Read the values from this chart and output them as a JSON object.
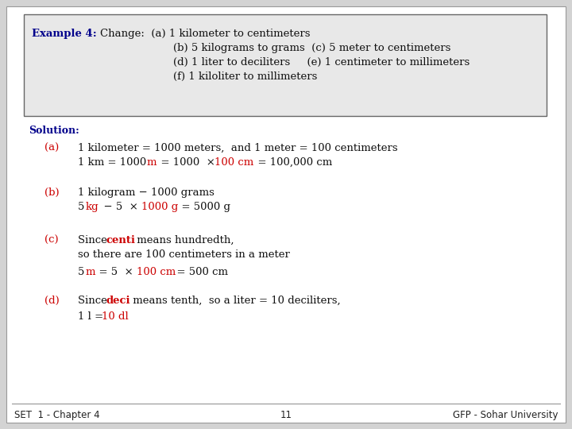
{
  "bg_color": "#d3d3d3",
  "slide_bg": "#ffffff",
  "box_bg": "#e8e8e8",
  "box_edge": "#666666",
  "blue_color": "#00008B",
  "red_color": "#CC0000",
  "black_color": "#111111",
  "footer_color": "#222222",
  "footer_left": "SET  1 - Chapter 4",
  "footer_center": "11",
  "footer_right": "GFP - Sohar University"
}
